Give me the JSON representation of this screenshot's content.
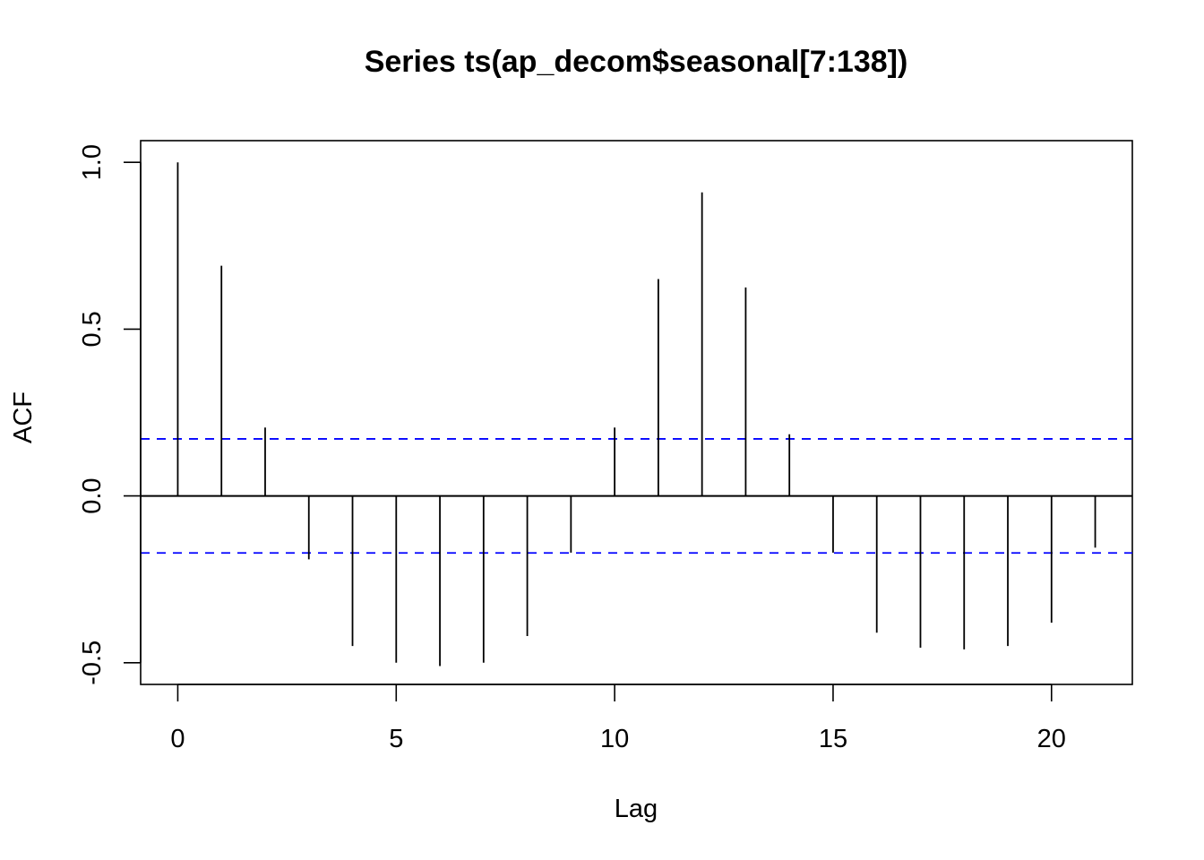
{
  "chart_data": {
    "type": "bar",
    "subtype": "acf-lag-plot",
    "title": "Series  ts(ap_decom$seasonal[7:138])",
    "xlabel": "Lag",
    "ylabel": "ACF",
    "xlim": [
      -0.85,
      21.85
    ],
    "ylim": [
      -0.565,
      1.065
    ],
    "x_ticks": [
      0,
      5,
      10,
      15,
      20
    ],
    "x_tick_labels": [
      "0",
      "5",
      "10",
      "15",
      "20"
    ],
    "y_ticks": [
      -0.5,
      0.0,
      0.5,
      1.0
    ],
    "y_tick_labels": [
      "-0.5",
      "0.0",
      "0.5",
      "1.0"
    ],
    "lags": [
      0,
      1,
      2,
      3,
      4,
      5,
      6,
      7,
      8,
      9,
      10,
      11,
      12,
      13,
      14,
      15,
      16,
      17,
      18,
      19,
      20,
      21
    ],
    "values": [
      1.0,
      0.69,
      0.205,
      -0.19,
      -0.45,
      -0.5,
      -0.51,
      -0.5,
      -0.42,
      -0.17,
      0.205,
      0.65,
      0.91,
      0.625,
      0.185,
      -0.17,
      -0.41,
      -0.455,
      -0.46,
      -0.45,
      -0.38,
      -0.155
    ],
    "confidence_bound": 0.171,
    "zero_line": 0,
    "bar_color": "#000000",
    "bound_color": "#0000ff",
    "grid": false,
    "legend": "none"
  }
}
